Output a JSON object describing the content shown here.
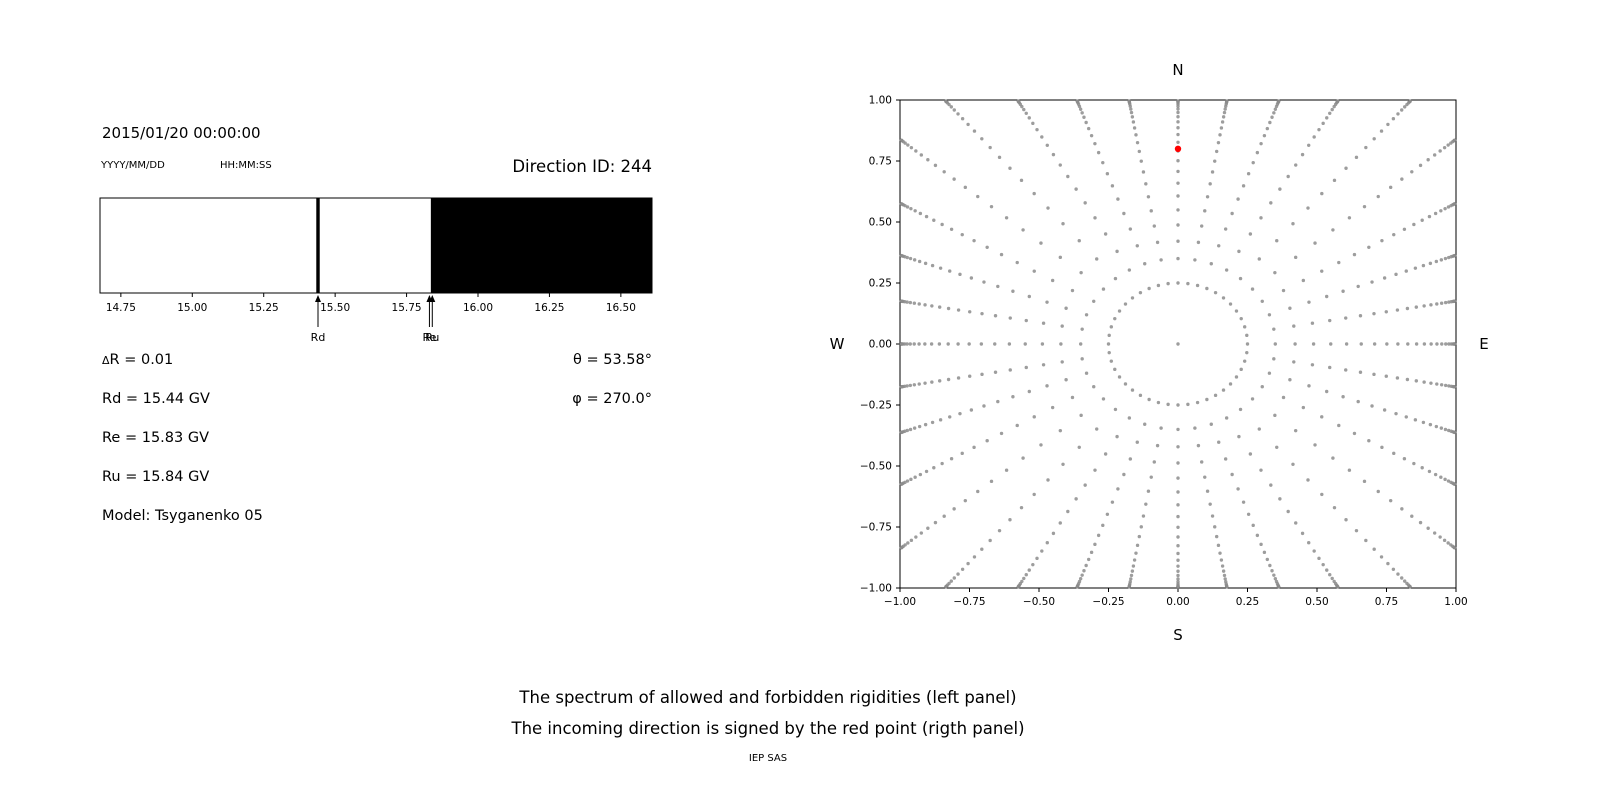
{
  "left_panel": {
    "datetime": "2015/01/20 00:00:00",
    "date_format": "YYYY/MM/DD",
    "time_format": "HH:MM:SS",
    "direction_id": "Direction ID: 244",
    "params": {
      "delta_r": "ΔR = 0.01",
      "rd": "Rd = 15.44 GV",
      "re": "Re = 15.83 GV",
      "ru": "Ru = 15.84 GV",
      "model": "Model: Tsyganenko 05",
      "theta": "θ = 53.58°",
      "phi": "φ = 270.0°"
    }
  },
  "captions": {
    "line1": "The spectrum of allowed and forbidden rigidities (left panel)",
    "line2": "The incoming direction is signed by the red point (rigth panel)",
    "credit": "IEP SAS"
  },
  "chart_data": [
    {
      "type": "bar",
      "panel": "left-spectrum",
      "xlim": [
        14.677,
        16.609
      ],
      "xticks": [
        14.75,
        15.0,
        15.25,
        15.5,
        15.75,
        16.0,
        16.25,
        16.5
      ],
      "xtick_labels": [
        "14.75",
        "15.00",
        "15.25",
        "15.50",
        "15.75",
        "16.00",
        "16.25",
        "16.50"
      ],
      "allowed_color": "#ffffff",
      "forbidden_color": "#000000",
      "bands": [
        {
          "from": 15.434,
          "to": 15.446,
          "color": "#000000"
        },
        {
          "from": 15.835,
          "to": 16.609,
          "color": "#000000"
        }
      ],
      "markers": [
        {
          "label": "Rd",
          "x": 15.44
        },
        {
          "label": "Re",
          "x": 15.83
        },
        {
          "label": "Ru",
          "x": 15.84
        }
      ],
      "rd": 15.44,
      "re": 15.83,
      "ru": 15.84,
      "delta_r": 0.01
    },
    {
      "type": "scatter",
      "panel": "right-direction-map",
      "xlim": [
        -1,
        1
      ],
      "ylim": [
        -1,
        1
      ],
      "xticks": [
        -1,
        -0.75,
        -0.5,
        -0.25,
        0,
        0.25,
        0.5,
        0.75,
        1
      ],
      "xtick_labels": [
        "−1.00",
        "−0.75",
        "−0.50",
        "−0.25",
        "0.00",
        "0.25",
        "0.50",
        "0.75",
        "1.00"
      ],
      "yticks": [
        1,
        0.75,
        0.5,
        0.25,
        0,
        -0.25,
        -0.5,
        -0.75,
        -1
      ],
      "ytick_labels": [
        "1.00",
        "0.75",
        "0.50",
        "0.25",
        "0.00",
        "−0.25",
        "−0.50",
        "−0.75",
        "−1.00"
      ],
      "compass": {
        "top": "N",
        "bottom": "S",
        "left": "W",
        "right": "E"
      },
      "red_point": {
        "x": 0.0,
        "y": 0.8,
        "color": "#ff0000"
      },
      "gray_points": {
        "color": "#8c8c8c",
        "spokes": 36,
        "r_start": 0.35,
        "r_max": 1.45,
        "points_per_spoke": 22,
        "bunch_exponent": 2.4,
        "ring_radius": 0.25,
        "ring_points": 44,
        "center_point": true
      }
    }
  ]
}
